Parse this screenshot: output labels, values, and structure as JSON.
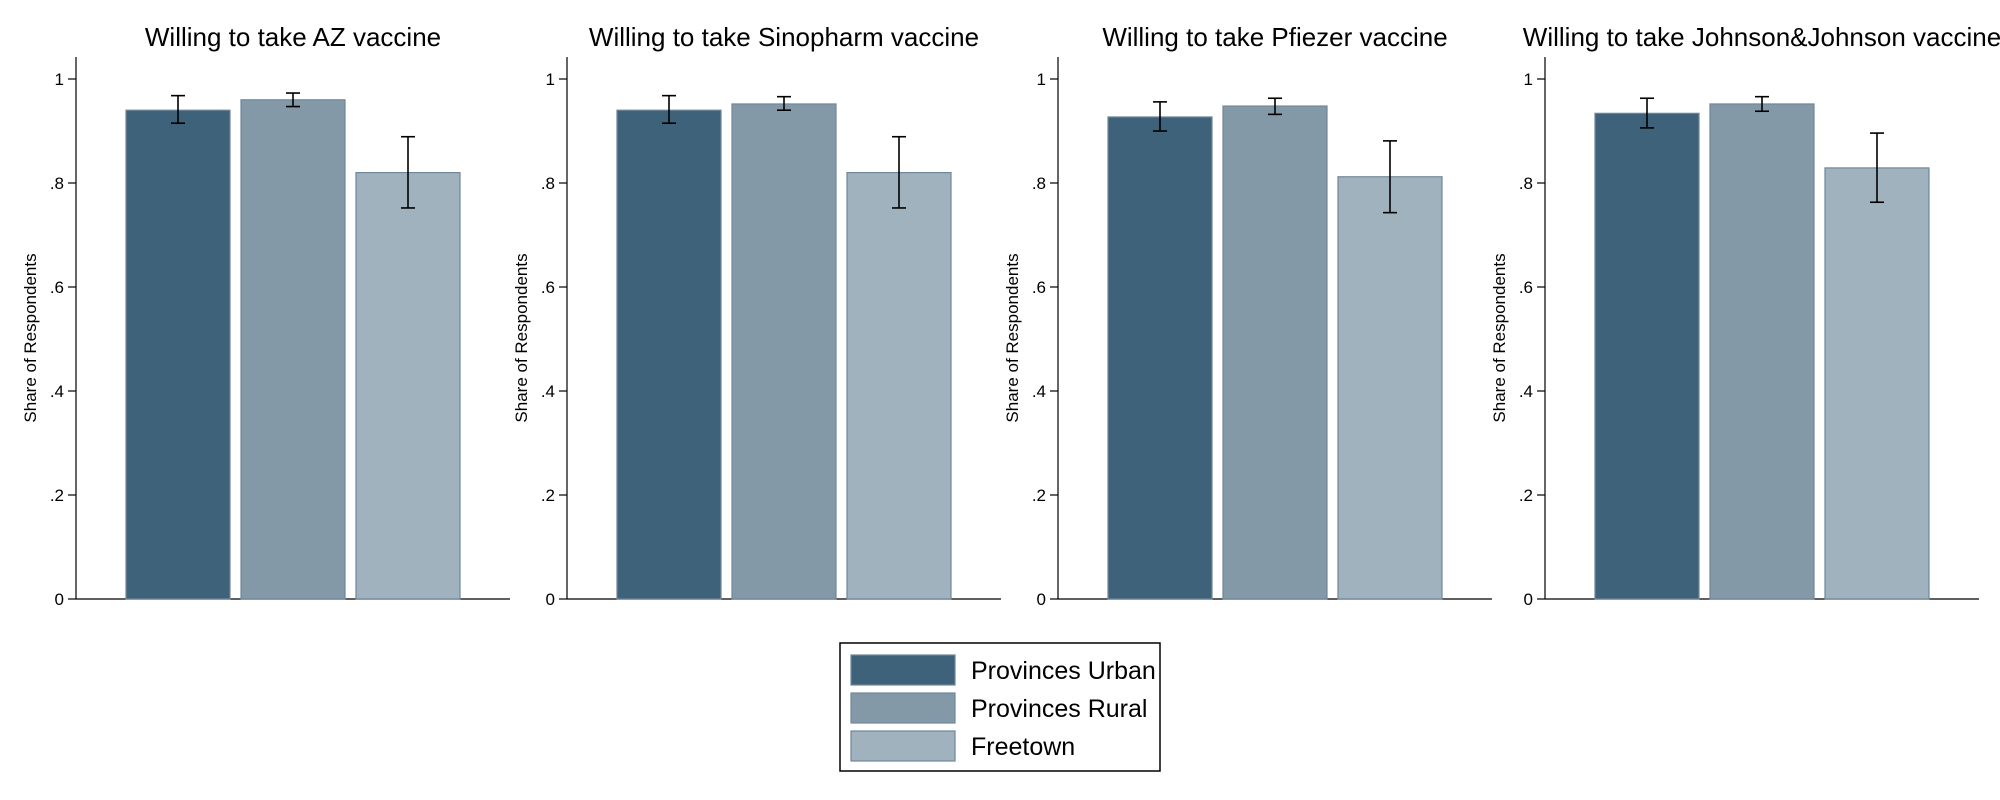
{
  "chart_data": {
    "type": "bar",
    "ylabel": "Share of Respondents",
    "ylim": [
      0,
      1.04
    ],
    "yticks": [
      0,
      0.2,
      0.4,
      0.6,
      0.8,
      1
    ],
    "ytick_labels": [
      "0",
      ".2",
      ".4",
      ".6",
      ".8",
      "1"
    ],
    "grid": false,
    "legend": {
      "position": "bottom-center",
      "entries": [
        "Provinces Urban",
        "Provinces Rural",
        "Freetown"
      ]
    },
    "colors": {
      "Provinces Urban": "#3f627b",
      "Provinces Rural": "#8399a7",
      "Freetown": "#a1b2bf",
      "bar_stroke": "#6f8799"
    },
    "panels": [
      {
        "title": "Willing to take AZ vaccine",
        "series": [
          {
            "name": "Provinces Urban",
            "value": 0.94,
            "ci": [
              0.915,
              0.968
            ]
          },
          {
            "name": "Provinces Rural",
            "value": 0.96,
            "ci": [
              0.947,
              0.973
            ]
          },
          {
            "name": "Freetown",
            "value": 0.82,
            "ci": [
              0.752,
              0.889
            ]
          }
        ]
      },
      {
        "title": "Willing to take Sinopharm vaccine",
        "series": [
          {
            "name": "Provinces Urban",
            "value": 0.94,
            "ci": [
              0.915,
              0.968
            ]
          },
          {
            "name": "Provinces Rural",
            "value": 0.952,
            "ci": [
              0.94,
              0.966
            ]
          },
          {
            "name": "Freetown",
            "value": 0.82,
            "ci": [
              0.752,
              0.889
            ]
          }
        ]
      },
      {
        "title": "Willing to take Pfiezer vaccine",
        "series": [
          {
            "name": "Provinces Urban",
            "value": 0.927,
            "ci": [
              0.9,
              0.956
            ]
          },
          {
            "name": "Provinces Rural",
            "value": 0.948,
            "ci": [
              0.932,
              0.963
            ]
          },
          {
            "name": "Freetown",
            "value": 0.812,
            "ci": [
              0.743,
              0.881
            ]
          }
        ]
      },
      {
        "title": "Willing to take Johnson&Johnson vaccine",
        "series": [
          {
            "name": "Provinces Urban",
            "value": 0.934,
            "ci": [
              0.906,
              0.963
            ]
          },
          {
            "name": "Provinces Rural",
            "value": 0.952,
            "ci": [
              0.938,
              0.966
            ]
          },
          {
            "name": "Freetown",
            "value": 0.829,
            "ci": [
              0.763,
              0.896
            ]
          }
        ]
      }
    ]
  }
}
